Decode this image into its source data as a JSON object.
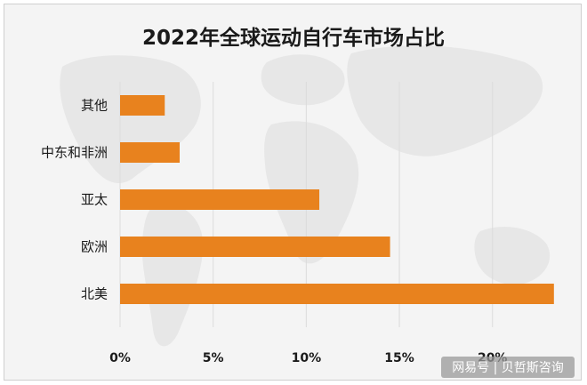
{
  "chart_data": {
    "type": "bar",
    "orientation": "horizontal",
    "title": "2022年全球运动自行车市场占比",
    "categories": [
      "其他",
      "中东和非洲",
      "亚太",
      "欧洲",
      "北美"
    ],
    "values": [
      2.4,
      3.2,
      10.7,
      14.5,
      23.3
    ],
    "unit": "%",
    "xlim": [
      0,
      23.5
    ],
    "xticks": [
      0,
      5,
      10,
      15,
      20
    ],
    "xtick_labels": [
      "0%",
      "5%",
      "10%",
      "15%",
      "20%"
    ],
    "grid": true,
    "bar_color": "#e8821e",
    "grid_color": "#dcdcdc"
  },
  "watermark": "网易号 | 贝哲斯咨询"
}
